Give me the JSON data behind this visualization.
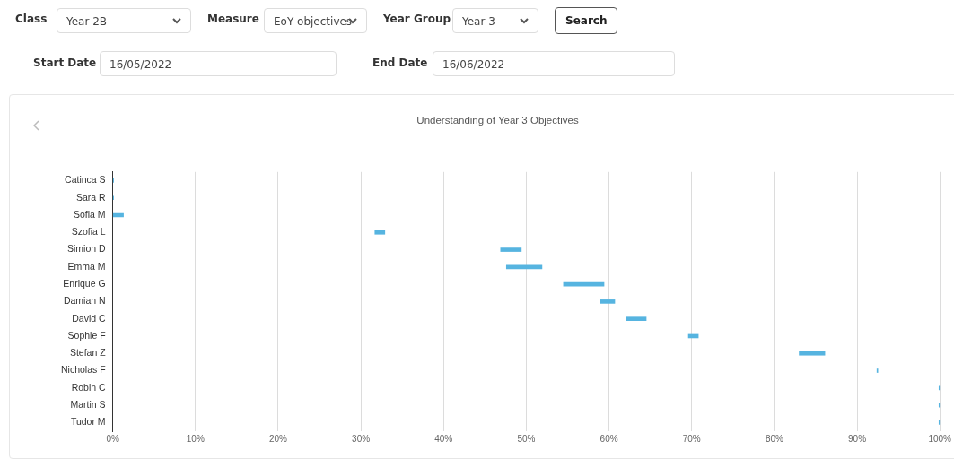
{
  "chart_data": {
    "type": "bar",
    "title": "Understanding of Year 3 Objectives",
    "orientation": "horizontal",
    "color": "#56b4e0",
    "categories": [
      "Catinca S",
      "Sara R",
      "Sofia M",
      "Szofia L",
      "Simion D",
      "Emma M",
      "Enrique G",
      "Damian N",
      "David C",
      "Sophie F",
      "Stefan Z",
      "Nicholas F",
      "Robin C",
      "Martin S",
      "Tudor M"
    ],
    "base": [
      0,
      0,
      0,
      31.7,
      46.9,
      47.6,
      54.5,
      58.9,
      62.1,
      69.6,
      83,
      92.4,
      99.9,
      99.9,
      99.9
    ],
    "values": [
      0.1,
      0.1,
      1.3,
      1.2,
      2.5,
      4.3,
      4.9,
      1.8,
      2.4,
      1.2,
      3.1,
      0.1,
      0.1,
      0.1,
      0.1
    ],
    "xlim": [
      0,
      100
    ],
    "xticks": [
      {
        "value": 0,
        "label": "0%"
      },
      {
        "value": 10,
        "label": "10%"
      },
      {
        "value": 20,
        "label": "20%"
      },
      {
        "value": 30,
        "label": "30%"
      },
      {
        "value": 40,
        "label": "40%"
      },
      {
        "value": 50,
        "label": "50%"
      },
      {
        "value": 60,
        "label": "60%"
      },
      {
        "value": 70,
        "label": "70%"
      },
      {
        "value": 80,
        "label": "80%"
      },
      {
        "value": 90,
        "label": "90%"
      },
      {
        "value": 100,
        "label": "100%"
      }
    ],
    "grid": "x",
    "annotations": [
      "Class",
      "Year 2B",
      "Measure",
      "EoY objectives",
      "Year Group",
      "Year 3",
      "Search",
      "Start Date",
      "16/05/2022",
      "End Date",
      "16/06/2022"
    ]
  }
}
